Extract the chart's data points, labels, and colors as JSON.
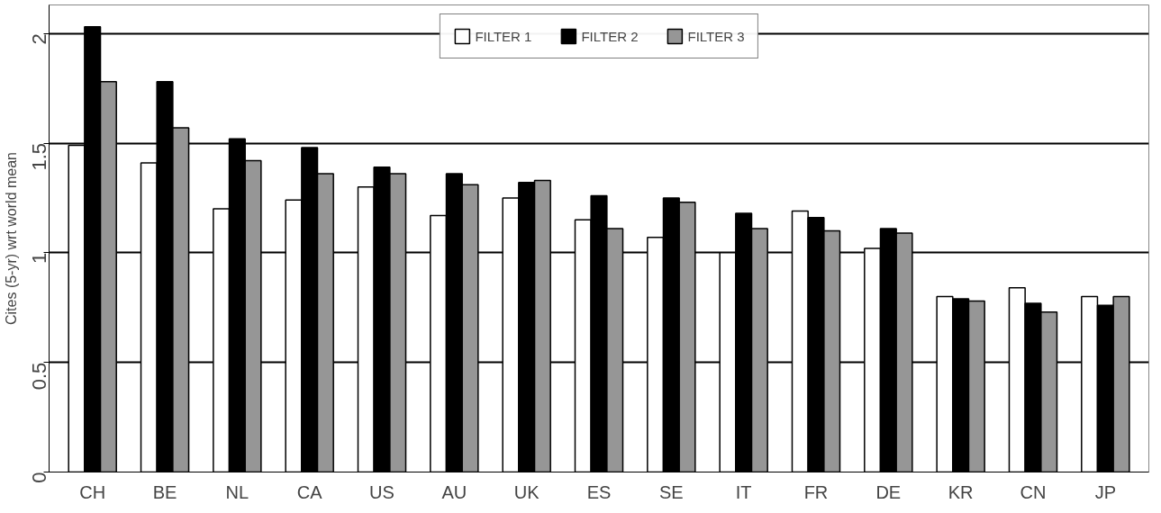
{
  "chart_data": {
    "type": "bar",
    "ylabel": "Cites (5-yr) wrt world mean",
    "categories": [
      "CH",
      "BE",
      "NL",
      "CA",
      "US",
      "AU",
      "UK",
      "ES",
      "SE",
      "IT",
      "FR",
      "DE",
      "KR",
      "CN",
      "JP"
    ],
    "series": [
      {
        "name": "FILTER 1",
        "color": "#ffffff",
        "values": [
          1.49,
          1.41,
          1.2,
          1.24,
          1.3,
          1.17,
          1.25,
          1.15,
          1.07,
          1.0,
          1.19,
          1.02,
          0.8,
          0.84,
          0.8
        ]
      },
      {
        "name": "FILTER 2",
        "color": "#000000",
        "values": [
          2.03,
          1.78,
          1.52,
          1.48,
          1.39,
          1.36,
          1.32,
          1.26,
          1.25,
          1.18,
          1.16,
          1.11,
          0.79,
          0.77,
          0.76
        ]
      },
      {
        "name": "FILTER 3",
        "color": "#969696",
        "values": [
          1.78,
          1.57,
          1.42,
          1.36,
          1.36,
          1.31,
          1.33,
          1.11,
          1.23,
          1.11,
          1.1,
          1.09,
          0.78,
          0.73,
          0.8
        ]
      }
    ],
    "ylim": [
      0,
      2.13
    ],
    "yticks": [
      0,
      0.5,
      1,
      1.5,
      2
    ],
    "grid": "y",
    "legend": "top"
  }
}
